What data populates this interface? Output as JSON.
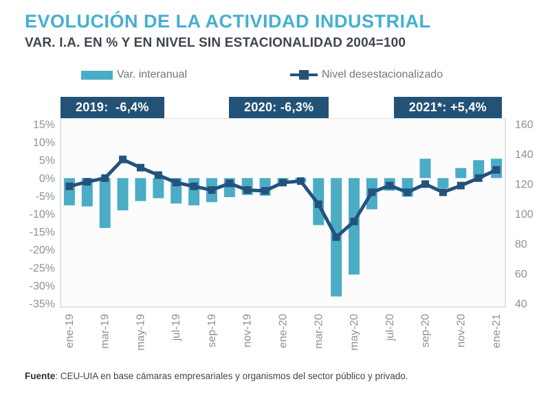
{
  "header": {
    "title": "EVOLUCIÓN DE LA ACTIVIDAD INDUSTRIAL",
    "subtitle": "VAR. I.A. EN % Y EN NIVEL SIN ESTACIONALIDAD 2004=100"
  },
  "legend": {
    "bar_label": "Var. interanual",
    "line_label": "Nivel desestacionalizado"
  },
  "annotations": [
    {
      "label": "2019:  -6,4%"
    },
    {
      "label": "2020: -6,3%"
    },
    {
      "label": "2021*: +5,4%"
    }
  ],
  "footer": {
    "source_label": "Fuente",
    "source_text": ": CEU-UIA en base cámaras empresariales y organismos del sector público y privado."
  },
  "colors": {
    "bar": "#4BACC6",
    "line": "#23527C",
    "annotation_bg": "#235277",
    "title": "#45AFD1",
    "subtitle": "#3E4551",
    "axis_text": "#8A9096",
    "legend_text": "#6F7780",
    "plot_border": "#D9D9D9",
    "plot_bg": "#FCFCFC"
  },
  "chart_data": {
    "type": "bar+line combo",
    "title": "EVOLUCIÓN DE LA ACTIVIDAD INDUSTRIAL",
    "subtitle": "VAR. I.A. EN % Y EN NIVEL SIN ESTACIONALIDAD 2004=100",
    "categories": [
      "ene-19",
      "feb-19",
      "mar-19",
      "abr-19",
      "may-19",
      "jun-19",
      "jul-19",
      "ago-19",
      "sep-19",
      "oct-19",
      "nov-19",
      "dic-19",
      "ene-20",
      "feb-20",
      "mar-20",
      "abr-20",
      "may-20",
      "jun-20",
      "jul-20",
      "ago-20",
      "sep-20",
      "oct-20",
      "nov-20",
      "dic-20",
      "ene-21"
    ],
    "x_tick_labels": [
      "ene-19",
      "mar-19",
      "may-19",
      "jul-19",
      "sep-19",
      "nov-19",
      "ene-20",
      "mar-20",
      "may-20",
      "jul-20",
      "sep-20",
      "nov-20",
      "ene-21"
    ],
    "series": [
      {
        "name": "Var. interanual",
        "type": "bar",
        "axis": "left",
        "values": [
          -7.6,
          -7.9,
          -13.9,
          -9.0,
          -6.4,
          -5.6,
          -7.1,
          -7.6,
          -6.7,
          -5.3,
          -4.7,
          -4.9,
          -1.5,
          -1.2,
          -13.1,
          -33.0,
          -26.9,
          -8.7,
          -3.5,
          -5.2,
          5.4,
          -2.8,
          2.8,
          5.0,
          5.4
        ]
      },
      {
        "name": "Nivel desestacionalizado",
        "type": "line",
        "axis": "right",
        "values": [
          118.5,
          121.5,
          124,
          136.5,
          131,
          126,
          121,
          118.5,
          116,
          120.5,
          116,
          115.5,
          121,
          122,
          106.5,
          84.5,
          95,
          114.5,
          119,
          114.5,
          120,
          114.5,
          119,
          124,
          129.5
        ]
      }
    ],
    "left_axis": {
      "unit": "%",
      "min": -35,
      "max": 15,
      "step": 5,
      "tick_labels": [
        "15%",
        "10%",
        "5%",
        "0%",
        "-5%",
        "-10%",
        "-15%",
        "-20%",
        "-25%",
        "-30%",
        "-35%"
      ]
    },
    "right_axis": {
      "min": 40,
      "max": 160,
      "step": 20,
      "tick_labels": [
        "160",
        "140",
        "120",
        "100",
        "80",
        "60",
        "40"
      ]
    },
    "grid": false,
    "legend_position": "top",
    "annotations": [
      "2019:  -6,4%",
      "2020: -6,3%",
      "2021*: +5,4%"
    ]
  }
}
